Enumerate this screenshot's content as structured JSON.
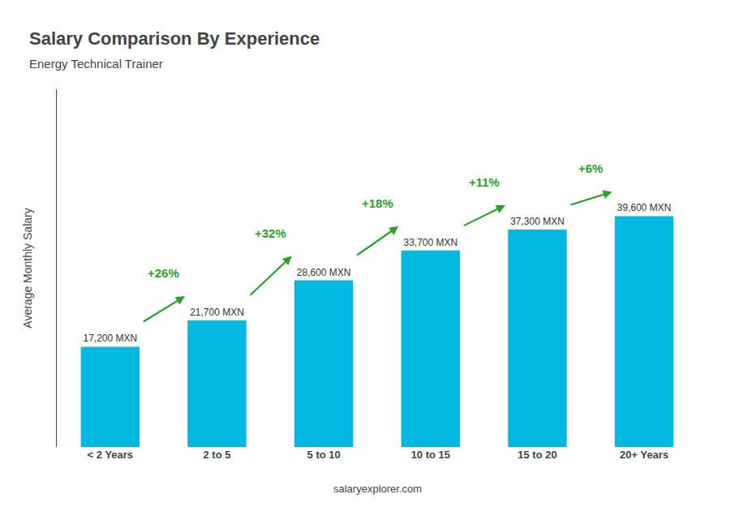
{
  "chart_data": {
    "type": "bar",
    "title": "Salary Comparison By Experience",
    "subtitle": "Energy Technical Trainer",
    "ylabel": "Average Monthly Salary",
    "footer": "salaryexplorer.com",
    "categories": [
      "< 2 Years",
      "2 to 5",
      "5 to 10",
      "10 to 15",
      "15 to 20",
      "20+ Years"
    ],
    "values": [
      17200,
      21700,
      28600,
      33700,
      37300,
      39600
    ],
    "value_labels": [
      "17,200 MXN",
      "21,700 MXN",
      "28,600 MXN",
      "33,700 MXN",
      "37,300 MXN",
      "39,600 MXN"
    ],
    "data_labels": true,
    "color": "#00b8e0",
    "annotations": [
      {
        "text": "+26%",
        "from": "< 2 Years",
        "to": "2 to 5"
      },
      {
        "text": "+32%",
        "from": "2 to 5",
        "to": "5 to 10"
      },
      {
        "text": "+18%",
        "from": "5 to 10",
        "to": "10 to 15"
      },
      {
        "text": "+11%",
        "from": "10 to 15",
        "to": "15 to 20"
      },
      {
        "text": "+6%",
        "from": "15 to 20",
        "to": "20+ Years"
      }
    ],
    "ylim": [
      0,
      61380
    ],
    "tick_labels": "x",
    "grid": false
  }
}
